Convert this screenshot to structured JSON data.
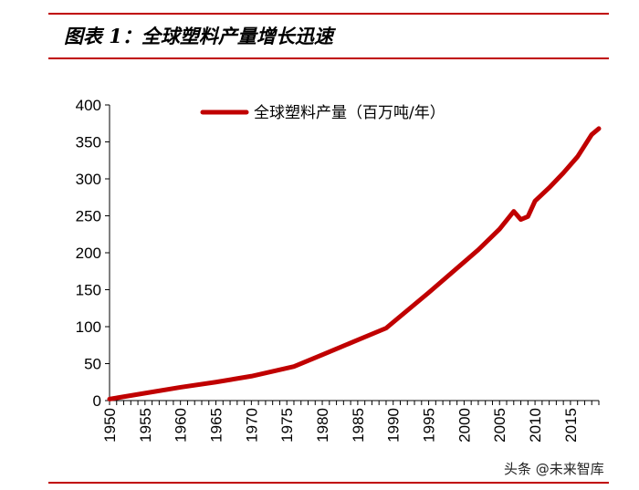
{
  "header": {
    "title": "图表 1：全球塑料产量增长迅速"
  },
  "watermark": "头条 @未来智库",
  "colors": {
    "accent": "#c00000",
    "series": "#c00000",
    "axis": "#000000"
  },
  "chart_data": {
    "type": "line",
    "title": "",
    "xlabel": "",
    "ylabel": "",
    "xlim": [
      1950,
      2019
    ],
    "ylim": [
      0,
      400
    ],
    "x_ticks": [
      1950,
      1955,
      1960,
      1965,
      1970,
      1975,
      1980,
      1985,
      1990,
      1995,
      2000,
      2005,
      2010,
      2015
    ],
    "y_ticks": [
      0,
      50,
      100,
      150,
      200,
      250,
      300,
      350,
      400
    ],
    "grid": false,
    "legend_position": "top-center",
    "series": [
      {
        "name": "全球塑料产量（百万吨/年）",
        "x": [
          1950,
          1955,
          1960,
          1965,
          1970,
          1976,
          1980,
          1985,
          1989,
          1995,
          2002,
          2005,
          2007,
          2008,
          2009,
          2010,
          2012,
          2014,
          2016,
          2018,
          2019
        ],
        "y": [
          2,
          10,
          18,
          25,
          33,
          46,
          62,
          82,
          98,
          146,
          204,
          232,
          256,
          245,
          249,
          270,
          288,
          308,
          330,
          360,
          368
        ]
      }
    ]
  }
}
